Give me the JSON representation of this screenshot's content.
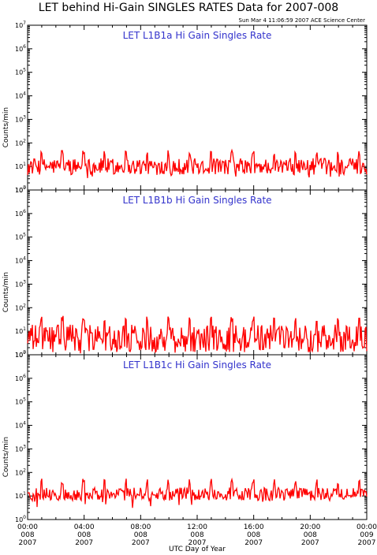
{
  "figure": {
    "title": "LET behind Hi-Gain SINGLES RATES Data for 2007-008",
    "timestamp": "Sun Mar  4 11:06:59 2007 ACE Science Center",
    "xlabel": "UTC Day of Year",
    "ylabel": "Counts/min"
  },
  "colors": {
    "series": "#ff0000",
    "panel_title": "#3333cc",
    "axes": "#000000",
    "background": "#ffffff"
  },
  "x_ticks": [
    {
      "time": "00:00",
      "day": "008",
      "year": "2007"
    },
    {
      "time": "04:00",
      "day": "008",
      "year": "2007"
    },
    {
      "time": "08:00",
      "day": "008",
      "year": "2007"
    },
    {
      "time": "12:00",
      "day": "008",
      "year": "2007"
    },
    {
      "time": "16:00",
      "day": "008",
      "year": "2007"
    },
    {
      "time": "20:00",
      "day": "008",
      "year": "2007"
    },
    {
      "time": "00:00",
      "day": "009",
      "year": "2007"
    }
  ],
  "chart_data": [
    {
      "type": "line",
      "title": "LET L1B1a Hi Gain Singles Rate",
      "ylabel": "Counts/min",
      "yscale": "log",
      "ylim": [
        1,
        10000000
      ],
      "xlim_hours": [
        0,
        24
      ],
      "y_tick_exponents": [
        0,
        1,
        2,
        3,
        4,
        5,
        6,
        7
      ],
      "baseline": 10,
      "noise_range": [
        4,
        20
      ],
      "spike_peak": 50,
      "spike_interval_hours": 1.5,
      "spike_count": 16,
      "series": [
        {
          "values_description_free": true,
          "hours": [
            0,
            24
          ],
          "typical": 10,
          "min": 3,
          "max": 60
        }
      ]
    },
    {
      "type": "line",
      "title": "LET L1B1b Hi Gain Singles Rate",
      "ylabel": "Counts/min",
      "yscale": "log",
      "ylim": [
        1,
        10000000
      ],
      "xlim_hours": [
        0,
        24
      ],
      "y_tick_exponents": [
        0,
        1,
        2,
        3,
        4,
        5,
        6,
        7
      ],
      "baseline": 5,
      "noise_range": [
        1,
        15
      ],
      "spike_peak": 45,
      "spike_interval_hours": 1.5,
      "spike_count": 16,
      "series": [
        {
          "hours": [
            0,
            24
          ],
          "typical": 5,
          "min": 1,
          "max": 50
        }
      ]
    },
    {
      "type": "line",
      "title": "LET L1B1c Hi Gain Singles Rate",
      "ylabel": "Counts/min",
      "yscale": "log",
      "ylim": [
        1,
        10000000
      ],
      "xlim_hours": [
        0,
        24
      ],
      "y_tick_exponents": [
        0,
        1,
        2,
        3,
        4,
        5,
        6,
        7
      ],
      "baseline": 12,
      "noise_range": [
        6,
        22
      ],
      "spike_peak": 55,
      "spike_interval_hours": 1.5,
      "spike_count": 16,
      "series": [
        {
          "hours": [
            0,
            24
          ],
          "typical": 12,
          "min": 3,
          "max": 65
        }
      ]
    }
  ]
}
